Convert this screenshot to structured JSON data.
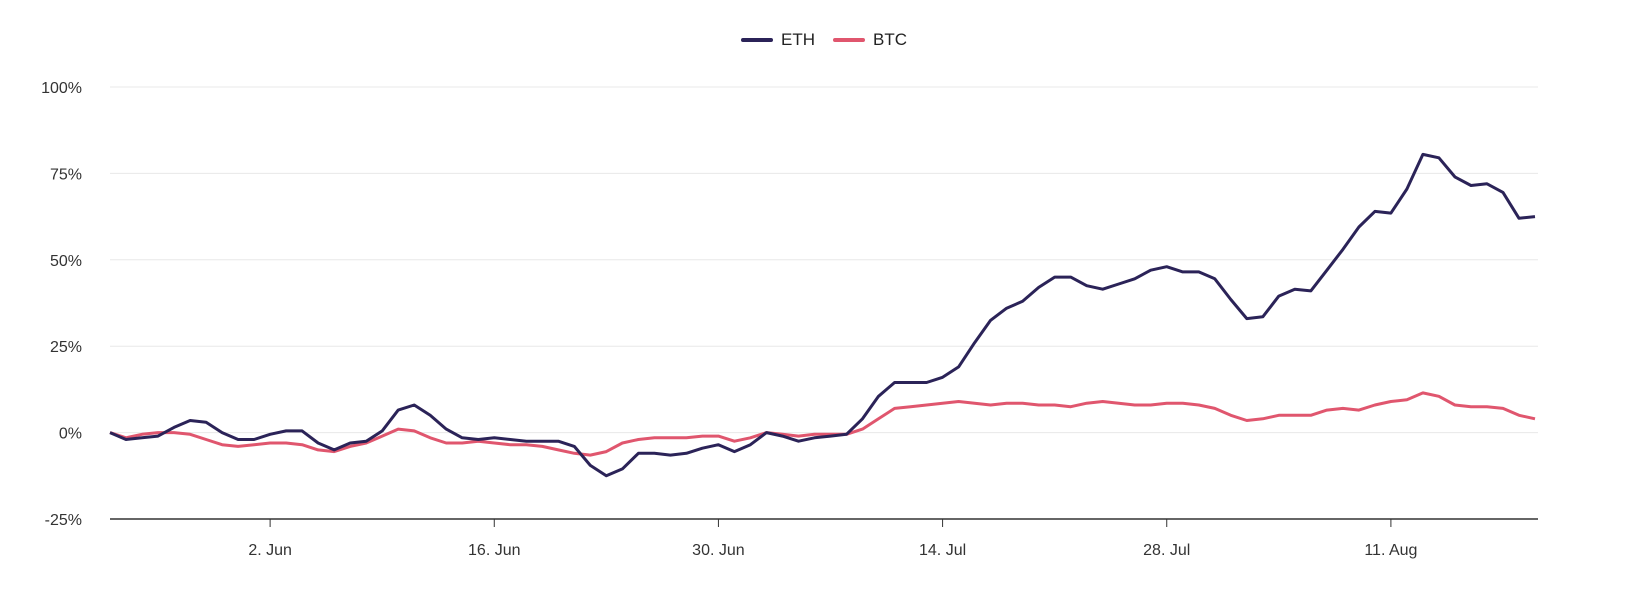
{
  "chart_data": {
    "type": "line",
    "title": "",
    "xlabel": "",
    "ylabel": "",
    "x_start": "2024-05-23",
    "x_ticks": [
      {
        "date": "2024-06-02",
        "label": "2. Jun"
      },
      {
        "date": "2024-06-16",
        "label": "16. Jun"
      },
      {
        "date": "2024-06-30",
        "label": "30. Jun"
      },
      {
        "date": "2024-07-14",
        "label": "14. Jul"
      },
      {
        "date": "2024-07-28",
        "label": "28. Jul"
      },
      {
        "date": "2024-08-11",
        "label": "11. Aug"
      }
    ],
    "y_ticks": [
      {
        "value": 100,
        "label": "100%"
      },
      {
        "value": 75,
        "label": "75%"
      },
      {
        "value": 50,
        "label": "50%"
      },
      {
        "value": 25,
        "label": "25%"
      },
      {
        "value": 0,
        "label": "0%"
      },
      {
        "value": -25,
        "label": "-25%"
      }
    ],
    "ylim": [
      -25,
      100
    ],
    "grid": true,
    "legend_position": "top-center",
    "series": [
      {
        "name": "ETH",
        "color": "#2b2358",
        "values": [
          0,
          -2,
          -1.5,
          -1,
          1.5,
          3.5,
          3,
          0,
          -2,
          -2,
          -0.5,
          0.5,
          0.5,
          -3,
          -5,
          -3,
          -2.5,
          0.5,
          6.5,
          8,
          5,
          1,
          -1.5,
          -2,
          -1.5,
          -2,
          -2.5,
          -2.5,
          -2.5,
          -4,
          -9.5,
          -12.5,
          -10.5,
          -6,
          -6,
          -6.5,
          -6,
          -4.5,
          -3.5,
          -5.5,
          -3.5,
          0,
          -1,
          -2.5,
          -1.5,
          -1,
          -0.5,
          4,
          10.5,
          14.5,
          14.5,
          14.5,
          16,
          19,
          26,
          32.5,
          36,
          38,
          42,
          45,
          45,
          42.5,
          41.5,
          43,
          44.5,
          47,
          48,
          46.5,
          46.5,
          44.5,
          38.5,
          33,
          33.5,
          39.5,
          41.5,
          41,
          47,
          53,
          59.5,
          64,
          63.5,
          70.5,
          80.5,
          79.5,
          74,
          71.5,
          72,
          69.5,
          62,
          62.5
        ]
      },
      {
        "name": "BTC",
        "color": "#e0566e",
        "values": [
          0,
          -1.5,
          -0.5,
          0,
          0,
          -0.5,
          -2,
          -3.5,
          -4,
          -3.5,
          -3,
          -3,
          -3.5,
          -5,
          -5.5,
          -4,
          -3,
          -1,
          1,
          0.5,
          -1.5,
          -3,
          -3,
          -2.5,
          -3,
          -3.5,
          -3.5,
          -4,
          -5,
          -6,
          -6.5,
          -5.5,
          -3,
          -2,
          -1.5,
          -1.5,
          -1.5,
          -1,
          -1,
          -2.5,
          -1.5,
          0,
          -0.5,
          -1,
          -0.5,
          -0.5,
          -0.5,
          1,
          4,
          7,
          7.5,
          8,
          8.5,
          9,
          8.5,
          8,
          8.5,
          8.5,
          8,
          8,
          7.5,
          8.5,
          9,
          8.5,
          8,
          8,
          8.5,
          8.5,
          8,
          7,
          5,
          3.5,
          4,
          5,
          5,
          5,
          6.5,
          7,
          6.5,
          8,
          9,
          9.5,
          11.5,
          10.5,
          8,
          7.5,
          7.5,
          7,
          5,
          4
        ]
      }
    ]
  }
}
